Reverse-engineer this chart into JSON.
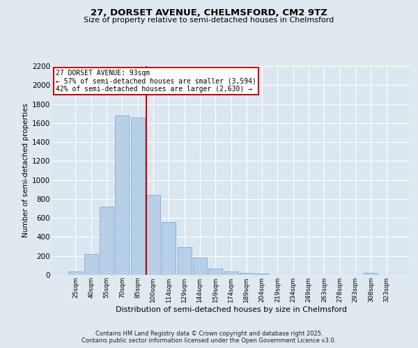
{
  "title": "27, DORSET AVENUE, CHELMSFORD, CM2 9TZ",
  "subtitle": "Size of property relative to semi-detached houses in Chelmsford",
  "xlabel": "Distribution of semi-detached houses by size in Chelmsford",
  "ylabel": "Number of semi-detached properties",
  "categories": [
    "25sqm",
    "40sqm",
    "55sqm",
    "70sqm",
    "85sqm",
    "100sqm",
    "114sqm",
    "129sqm",
    "144sqm",
    "159sqm",
    "174sqm",
    "189sqm",
    "204sqm",
    "219sqm",
    "234sqm",
    "249sqm",
    "263sqm",
    "278sqm",
    "293sqm",
    "308sqm",
    "323sqm"
  ],
  "values": [
    40,
    220,
    720,
    1680,
    1660,
    840,
    560,
    290,
    185,
    65,
    35,
    25,
    18,
    0,
    0,
    0,
    0,
    0,
    0,
    20,
    0
  ],
  "bar_color": "#b8cfe8",
  "bar_edge_color": "#7aadd4",
  "vline_color": "#cc0000",
  "vline_x": 4.575,
  "annotation_title": "27 DORSET AVENUE: 93sqm",
  "annotation_line1": "← 57% of semi-detached houses are smaller (3,594)",
  "annotation_line2": "42% of semi-detached houses are larger (2,630) →",
  "annotation_box_color": "#cc0000",
  "annotation_bg_color": "#ffffff",
  "ylim_max": 2200,
  "yticks": [
    0,
    200,
    400,
    600,
    800,
    1000,
    1200,
    1400,
    1600,
    1800,
    2000,
    2200
  ],
  "fig_bg_color": "#e0e8f0",
  "plot_bg_color": "#dce6f0",
  "grid_color": "#ffffff",
  "title_fontsize": 9.5,
  "subtitle_fontsize": 8,
  "footer_line1": "Contains HM Land Registry data © Crown copyright and database right 2025.",
  "footer_line2": "Contains public sector information licensed under the Open Government Licence v3.0."
}
